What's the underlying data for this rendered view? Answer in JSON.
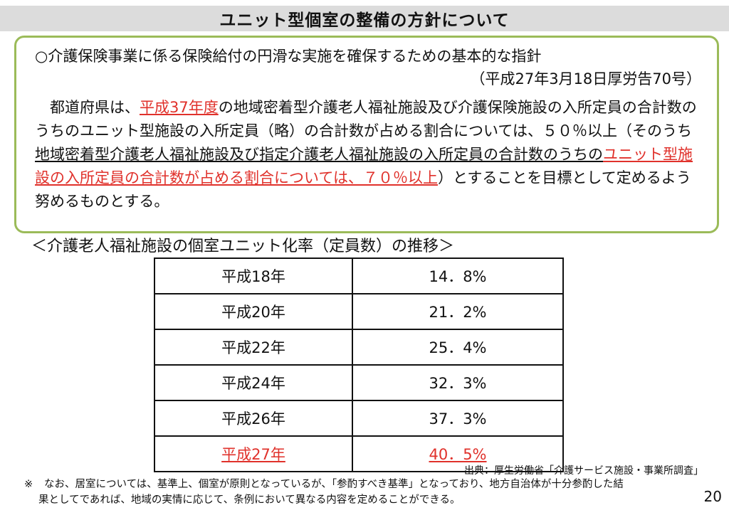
{
  "slide": {
    "title": "ユニット型個室の整備の方針について",
    "page_number": "20"
  },
  "policy": {
    "heading": "○介護保険事業に係る保険給付の円滑な実施を確保するための基本的な指針",
    "source": "（平成27年3月18日厚労告70号）",
    "p1_indent": "　都道府県は、",
    "p1_target_year": "平成37年度",
    "p1_mid": "の地域密着型介護老人福祉施設及び介護保険施設の入所定員の合計数のうちのユニット型施設の入所定員（略）の合計数が占める割合については、５０％以上（そのうち",
    "p1_ul_black": "地域密着型介護老人福祉施設及び指定介護老人福祉施設の入所定員の合計数のうちの",
    "p1_ul_red": "ユニット型施設の入所定員の合計数が占める割合については、７０％以上",
    "p1_end": "）とすることを目標として定めるよう努めるものとする。"
  },
  "table": {
    "caption": "＜介護老人福祉施設の個室ユニット化率（定員数）の推移＞",
    "rows": [
      {
        "year": "平成18年",
        "rate": "14．8%"
      },
      {
        "year": "平成20年",
        "rate": "21．2%"
      },
      {
        "year": "平成22年",
        "rate": "25．4%"
      },
      {
        "year": "平成24年",
        "rate": "32．3%"
      },
      {
        "year": "平成26年",
        "rate": "37．3%"
      },
      {
        "year": "平成27年",
        "rate": "40．5%"
      }
    ]
  },
  "notes": {
    "source": "出典：厚生労働省「介護サービス施設・事業所調査」",
    "footnote_mark": "※",
    "footnote_line1": "なお、居室については、基準上、個室が原則となっているが、「参酌すべき基準」となっており、地方自治体が十分参酌した結",
    "footnote_line2": "果としてであれば、地域の実情に応じて、条例において異なる内容を定めることができる。"
  },
  "colors": {
    "accent_red": "#e0312b",
    "box_border_green": "#9bbb59",
    "title_bar_gray": "#dcdcdc"
  }
}
